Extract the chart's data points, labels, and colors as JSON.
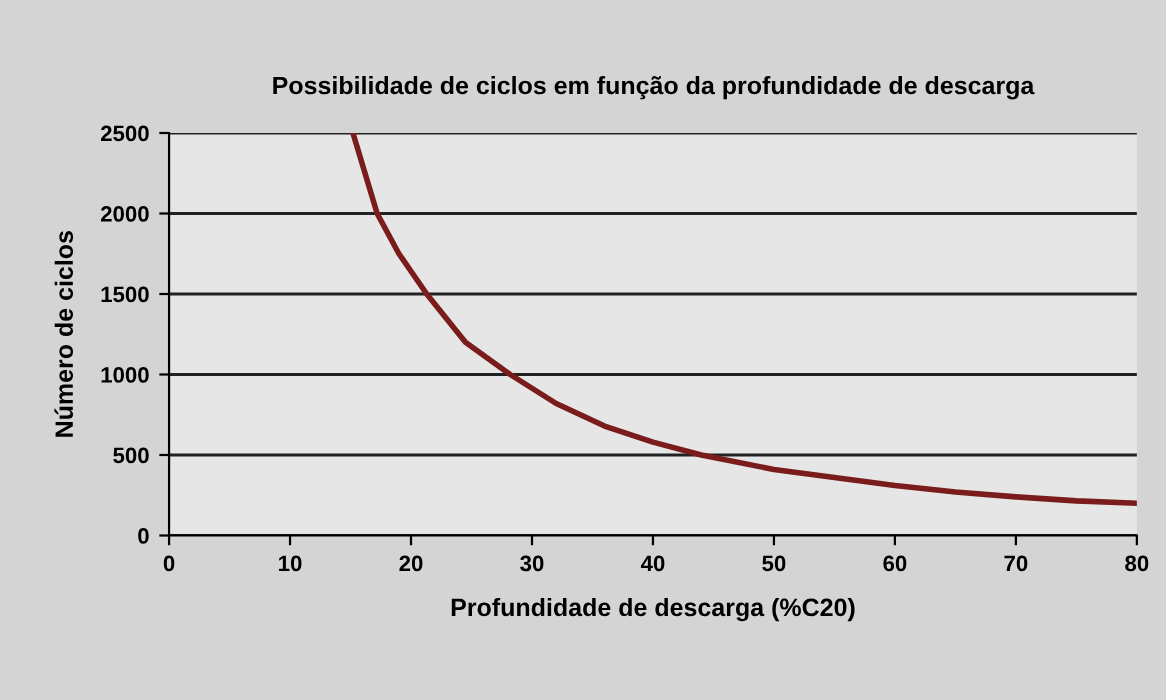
{
  "chart_data": {
    "type": "line",
    "title": "Possibilidade de ciclos em função da profundidade de descarga",
    "xlabel": "Profundidade de descarga (%C20)",
    "ylabel": "Número de ciclos",
    "series": [
      {
        "color": "#7a1c1c",
        "x": [
          15.2,
          16,
          17.2,
          19,
          21.3,
          24.5,
          28.2,
          32,
          36,
          40,
          44,
          50,
          55,
          60,
          65,
          70,
          75,
          80
        ],
        "values": [
          2500,
          2300,
          2000,
          1750,
          1500,
          1200,
          1000,
          820,
          680,
          580,
          500,
          410,
          360,
          310,
          270,
          240,
          215,
          200
        ]
      }
    ],
    "xlim": [
      0,
      80
    ],
    "ylim": [
      0,
      2500
    ],
    "xticks": [
      0,
      10,
      20,
      30,
      40,
      50,
      60,
      70,
      80
    ],
    "yticks": [
      0,
      500,
      1000,
      1500,
      2000,
      2500
    ],
    "grid": "y",
    "legend": false,
    "marker": "none",
    "line_style": "solid"
  }
}
